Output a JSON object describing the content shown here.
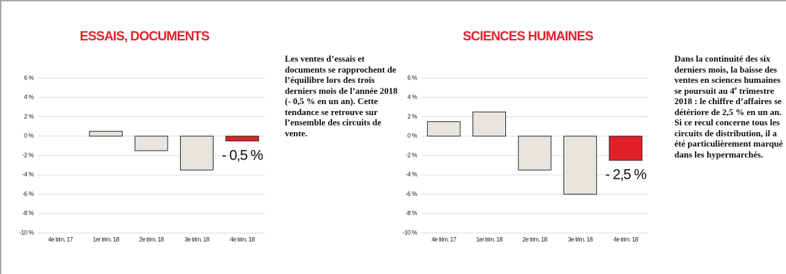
{
  "chart_data": [
    {
      "type": "bar",
      "title": "ESSAIS, DOCUMENTS",
      "categories": [
        "4e trim. 17",
        "1er trim. 18",
        "2e trim. 18",
        "3e trim. 18",
        "4e trim. 18"
      ],
      "values": [
        0,
        0.5,
        -1.5,
        -3.5,
        -0.5
      ],
      "value_labels": [
        null,
        null,
        null,
        null,
        "- 0,5 %"
      ],
      "colors": [
        "#e8e4de",
        "#e8e4de",
        "#e8e4de",
        "#e8e4de",
        "#e3202a"
      ],
      "ylim": [
        -10,
        6
      ],
      "yticks": [
        {
          "value": 6,
          "label": "6 %"
        },
        {
          "value": 4,
          "label": "4 %"
        },
        {
          "value": 2,
          "label": "2 %"
        },
        {
          "value": 0,
          "label": "0 %"
        },
        {
          "value": -2,
          "label": "-2 %"
        },
        {
          "value": -4,
          "label": "-4 %"
        },
        {
          "value": -6,
          "label": "-6 %"
        },
        {
          "value": -8,
          "label": "-8 %"
        },
        {
          "value": -10,
          "label": "-10 %"
        }
      ],
      "grid": true,
      "text": [
        "Les ventes d’essais et documents se rapprochent de l’équilibre lors des trois derniers mois de l’année 2018 (- 0,5 % en un an). Cette tendance se retrouve sur l’ensemble des circuits de vente."
      ]
    },
    {
      "type": "bar",
      "title": "SCIENCES HUMAINES",
      "categories": [
        "4e trim. 17",
        "1er trim. 18",
        "2e trim. 18",
        "3e trim. 18",
        "4e trim. 18"
      ],
      "values": [
        1.5,
        2.5,
        -3.5,
        -6,
        -2.5
      ],
      "value_labels": [
        null,
        null,
        null,
        null,
        "- 2,5 %"
      ],
      "colors": [
        "#e8e4de",
        "#e8e4de",
        "#e8e4de",
        "#e8e4de",
        "#e3202a"
      ],
      "ylim": [
        -10,
        6
      ],
      "yticks": [
        {
          "value": 6,
          "label": "6 %"
        },
        {
          "value": 4,
          "label": "4 %"
        },
        {
          "value": 2,
          "label": "2 %"
        },
        {
          "value": 0,
          "label": "0 %"
        },
        {
          "value": -2,
          "label": "-2 %"
        },
        {
          "value": -4,
          "label": "-4 %"
        },
        {
          "value": -6,
          "label": "-6 %"
        },
        {
          "value": -8,
          "label": "-8 %"
        },
        {
          "value": -10,
          "label": "-10 %"
        }
      ],
      "grid": true,
      "text": [
        "Dans la continuité des six derniers mois, la baisse des ventes en sciences humaines se poursuit au 4",
        "e",
        " trimestre 2018 : le chiffre d’affaires se détériore de 2,5 % en un an. Si ce recul concerne tous les circuits de distribution, il a été particulièrement marqué dans les hypermarchés."
      ]
    }
  ]
}
